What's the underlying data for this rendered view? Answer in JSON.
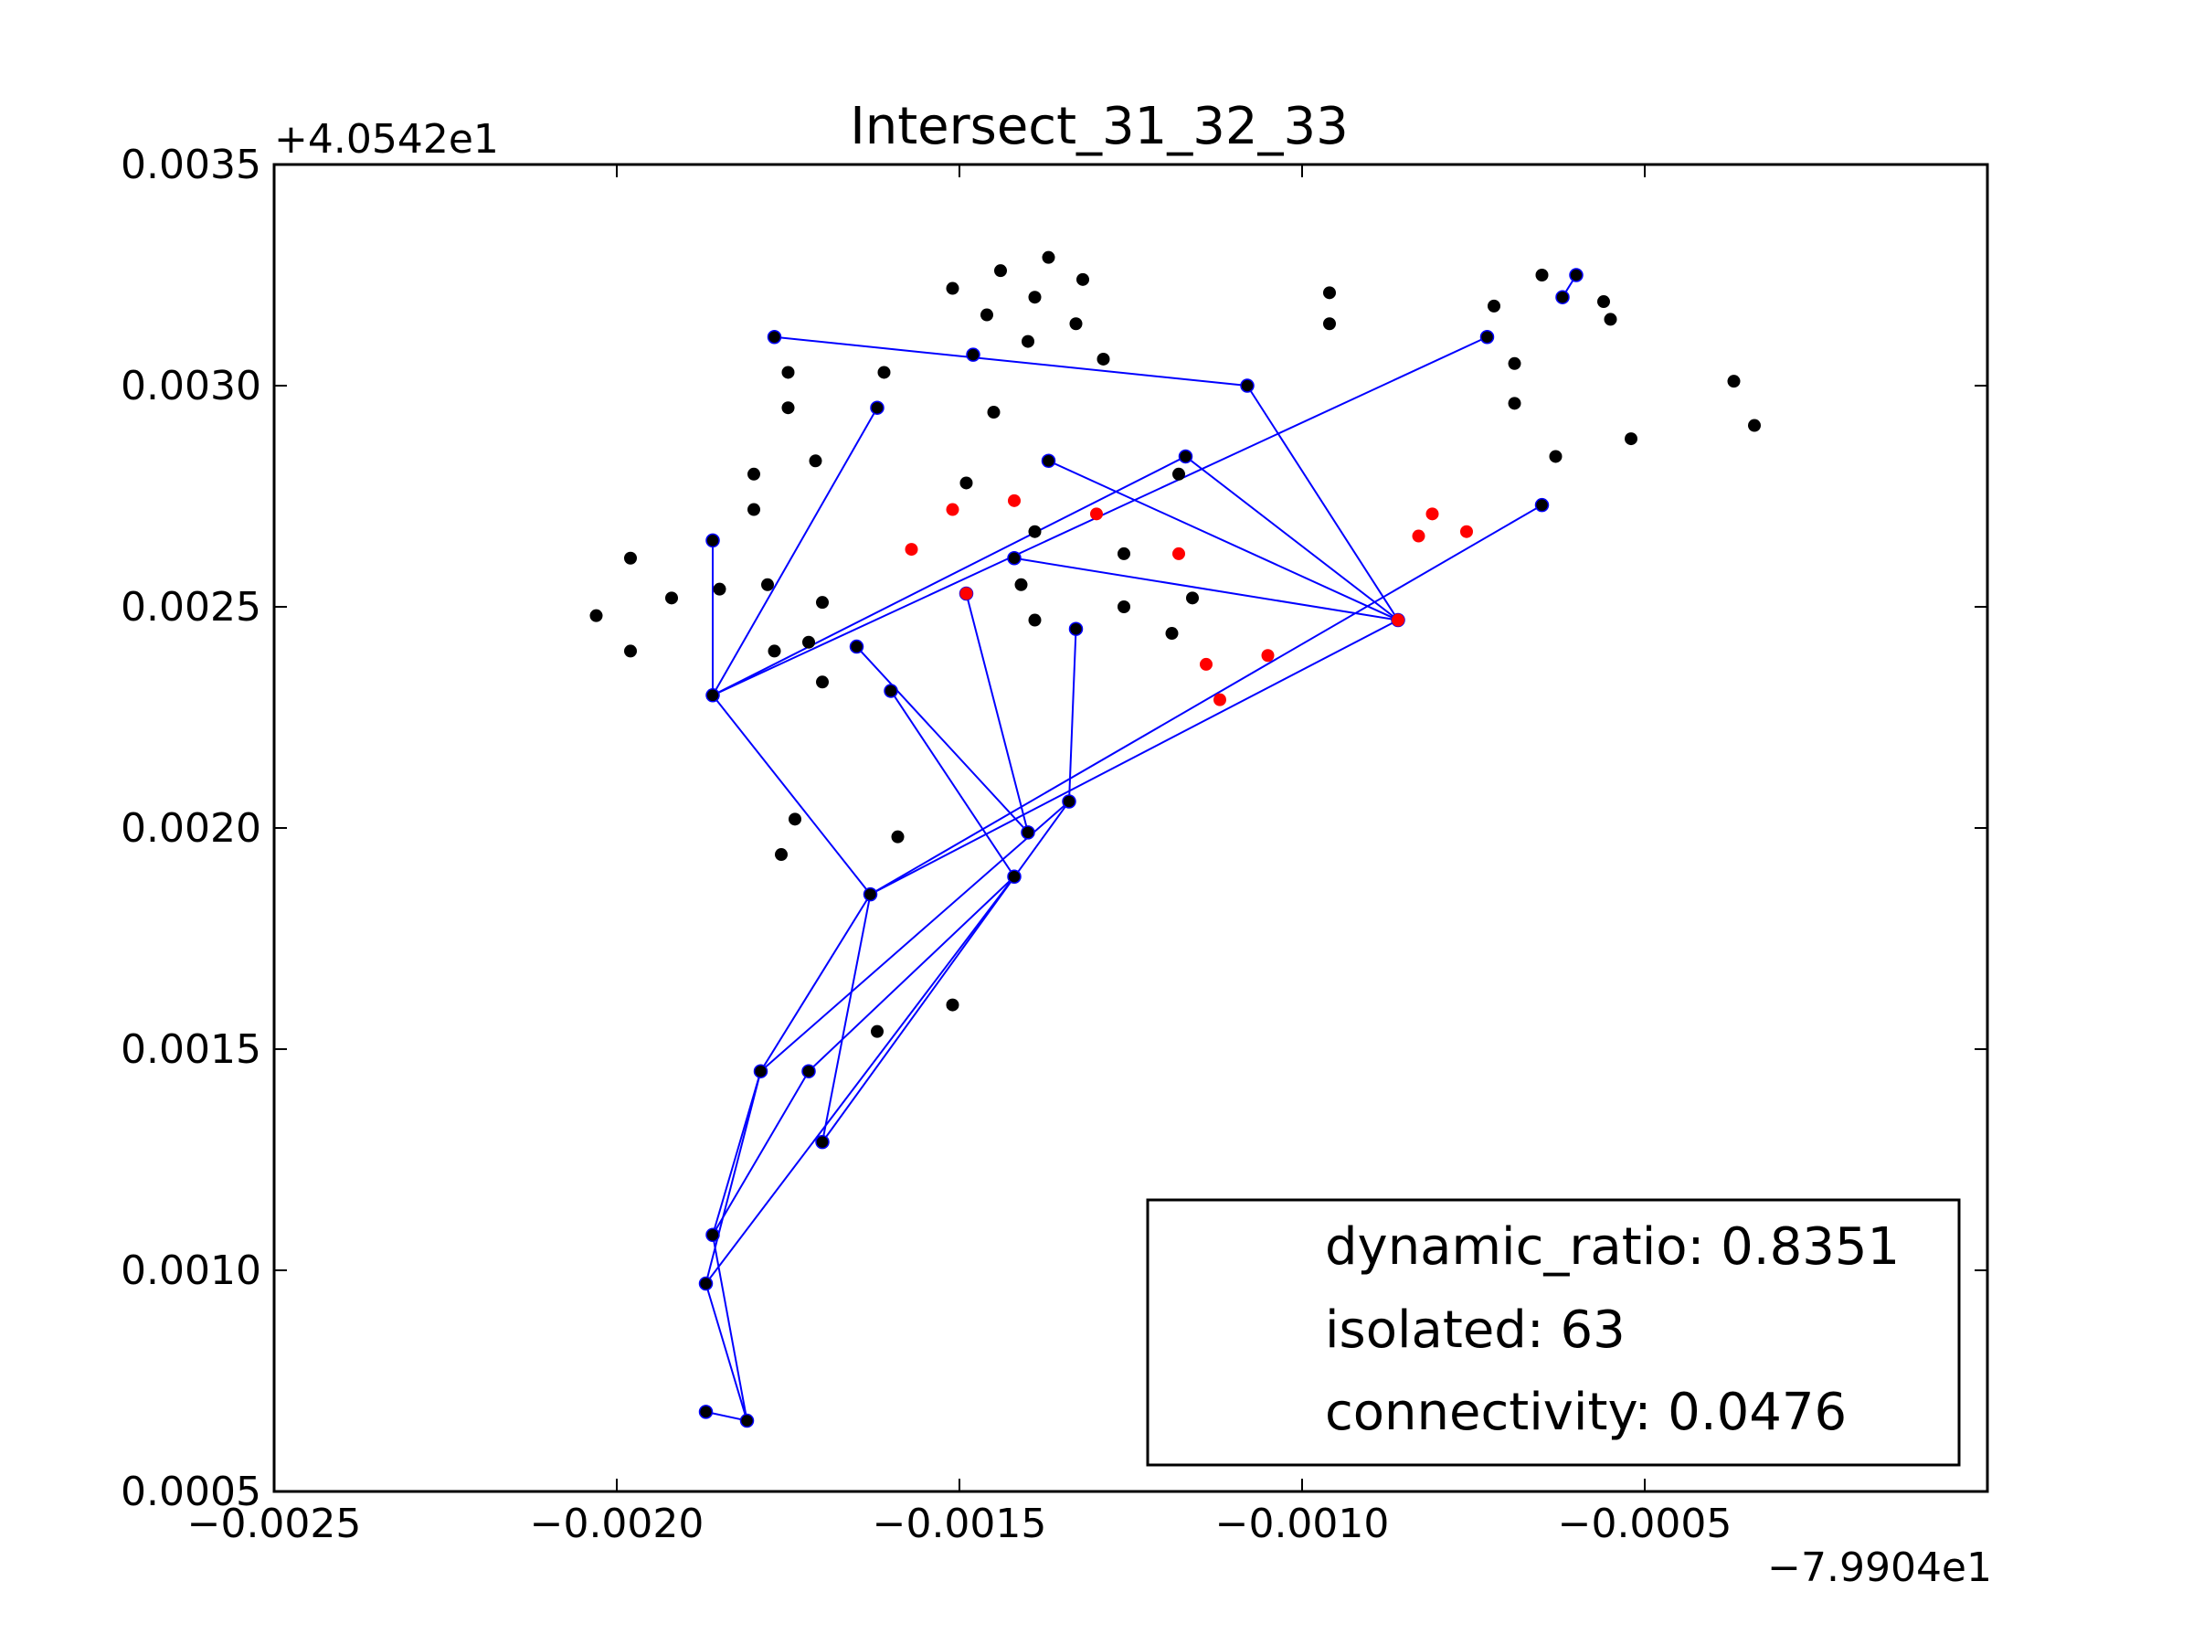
{
  "chart_data": {
    "type": "scatter",
    "title": "Intersect_31_32_33",
    "xlabel": "",
    "ylabel": "",
    "x_offset_label": "−7.9904e1",
    "y_offset_label": "+4.0542e1",
    "xlim": [
      -0.0025,
      0.0
    ],
    "ylim": [
      0.0005,
      0.0035
    ],
    "x_ticks": [
      -0.0025,
      -0.002,
      -0.0015,
      -0.001,
      -0.0005
    ],
    "x_tick_labels": [
      "−0.0025",
      "−0.0020",
      "−0.0015",
      "−0.0010",
      "−0.0005"
    ],
    "y_ticks": [
      0.0005,
      0.001,
      0.0015,
      0.002,
      0.0025,
      0.003,
      0.0035
    ],
    "y_tick_labels": [
      "0.0005",
      "0.0010",
      "0.0015",
      "0.0020",
      "0.0025",
      "0.0030",
      "0.0035"
    ],
    "grid": false,
    "legend_position": "lower-right",
    "legend_entries": [
      "dynamic_ratio: 0.8351",
      "isolated: 63",
      "connectivity: 0.0476"
    ],
    "colors": {
      "black_points": "#000000",
      "red_points": "#ff0000",
      "edges": "#0000ff"
    },
    "black_points": [
      [
        -0.00203,
        0.00248
      ],
      [
        -0.00198,
        0.00261
      ],
      [
        -0.00198,
        0.0024
      ],
      [
        -0.00192,
        0.00252
      ],
      [
        -0.00185,
        0.00254
      ],
      [
        -0.0018,
        0.00272
      ],
      [
        -0.0018,
        0.0028
      ],
      [
        -0.00178,
        0.00255
      ],
      [
        -0.00177,
        0.0024
      ],
      [
        -0.00175,
        0.00295
      ],
      [
        -0.00175,
        0.00303
      ],
      [
        -0.00174,
        0.00202
      ],
      [
        -0.00176,
        0.00194
      ],
      [
        -0.00172,
        0.00242
      ],
      [
        -0.00171,
        0.00283
      ],
      [
        -0.0017,
        0.00251
      ],
      [
        -0.0017,
        0.00233
      ],
      [
        -0.00161,
        0.00303
      ],
      [
        -0.00151,
        0.00322
      ],
      [
        -0.00149,
        0.00278
      ],
      [
        -0.00146,
        0.00316
      ],
      [
        -0.00145,
        0.00294
      ],
      [
        -0.00144,
        0.00326
      ],
      [
        -0.0014,
        0.0031
      ],
      [
        -0.00139,
        0.0032
      ],
      [
        -0.00139,
        0.00267
      ],
      [
        -0.00139,
        0.00247
      ],
      [
        -0.00141,
        0.00255
      ],
      [
        -0.00137,
        0.00329
      ],
      [
        -0.00133,
        0.00314
      ],
      [
        -0.00132,
        0.00324
      ],
      [
        -0.00129,
        0.00306
      ],
      [
        -0.00126,
        0.00262
      ],
      [
        -0.00126,
        0.0025
      ],
      [
        -0.00118,
        0.0028
      ],
      [
        -0.00116,
        0.00252
      ],
      [
        -0.00119,
        0.00244
      ],
      [
        -0.00096,
        0.00321
      ],
      [
        -0.00096,
        0.00314
      ],
      [
        -0.00072,
        0.00318
      ],
      [
        -0.00069,
        0.00305
      ],
      [
        -0.00069,
        0.00296
      ],
      [
        -0.00065,
        0.00325
      ],
      [
        -0.00063,
        0.00284
      ],
      [
        -0.00056,
        0.00319
      ],
      [
        -0.00055,
        0.00315
      ],
      [
        -0.00052,
        0.00288
      ],
      [
        -0.00037,
        0.00301
      ],
      [
        -0.00034,
        0.00291
      ],
      [
        -0.00159,
        0.00198
      ],
      [
        -0.00151,
        0.0016
      ],
      [
        -0.00162,
        0.00154
      ]
    ],
    "red_points": [
      [
        -0.00157,
        0.00263
      ],
      [
        -0.00151,
        0.00272
      ],
      [
        -0.00142,
        0.00274
      ],
      [
        -0.00149,
        0.00253
      ],
      [
        -0.0013,
        0.00271
      ],
      [
        -0.00118,
        0.00262
      ],
      [
        -0.00114,
        0.00237
      ],
      [
        -0.00112,
        0.00229
      ],
      [
        -0.00105,
        0.00239
      ],
      [
        -0.00086,
        0.00247
      ],
      [
        -0.00083,
        0.00266
      ],
      [
        -0.00081,
        0.00271
      ],
      [
        -0.00076,
        0.00267
      ]
    ],
    "graph_nodes": [
      [
        -0.00177,
        0.00311
      ],
      [
        -0.00148,
        0.00307
      ],
      [
        -0.00108,
        0.003
      ],
      [
        -0.00162,
        0.00295
      ],
      [
        -0.00186,
        0.00265
      ],
      [
        -0.00186,
        0.0023
      ],
      [
        -0.00137,
        0.00283
      ],
      [
        -0.00117,
        0.00284
      ],
      [
        -0.00073,
        0.00311
      ],
      [
        -0.00062,
        0.0032
      ],
      [
        -0.0006,
        0.00325
      ],
      [
        -0.00142,
        0.00261
      ],
      [
        -0.00086,
        0.00247
      ],
      [
        -0.00065,
        0.00273
      ],
      [
        -0.00133,
        0.00245
      ],
      [
        -0.00149,
        0.00253
      ],
      [
        -0.00165,
        0.00241
      ],
      [
        -0.0016,
        0.00231
      ],
      [
        -0.0014,
        0.00199
      ],
      [
        -0.00134,
        0.00206
      ],
      [
        -0.00142,
        0.00189
      ],
      [
        -0.00163,
        0.00185
      ],
      [
        -0.00179,
        0.00145
      ],
      [
        -0.00172,
        0.00145
      ],
      [
        -0.0017,
        0.00129
      ],
      [
        -0.00186,
        0.00108
      ],
      [
        -0.00187,
        0.00097
      ],
      [
        -0.00181,
        0.00066
      ],
      [
        -0.00187,
        0.00068
      ]
    ],
    "graph_edges": [
      [
        0,
        2
      ],
      [
        2,
        12
      ],
      [
        4,
        5
      ],
      [
        3,
        5
      ],
      [
        5,
        8
      ],
      [
        5,
        7
      ],
      [
        9,
        10
      ],
      [
        7,
        12
      ],
      [
        6,
        12
      ],
      [
        11,
        12
      ],
      [
        5,
        21
      ],
      [
        21,
        13
      ],
      [
        21,
        12
      ],
      [
        16,
        18
      ],
      [
        17,
        20
      ],
      [
        15,
        18
      ],
      [
        14,
        19
      ],
      [
        19,
        22
      ],
      [
        19,
        24
      ],
      [
        20,
        26
      ],
      [
        20,
        23
      ],
      [
        21,
        22
      ],
      [
        21,
        24
      ],
      [
        22,
        25
      ],
      [
        22,
        26
      ],
      [
        23,
        25
      ],
      [
        26,
        27
      ],
      [
        25,
        27
      ],
      [
        27,
        28
      ]
    ]
  }
}
